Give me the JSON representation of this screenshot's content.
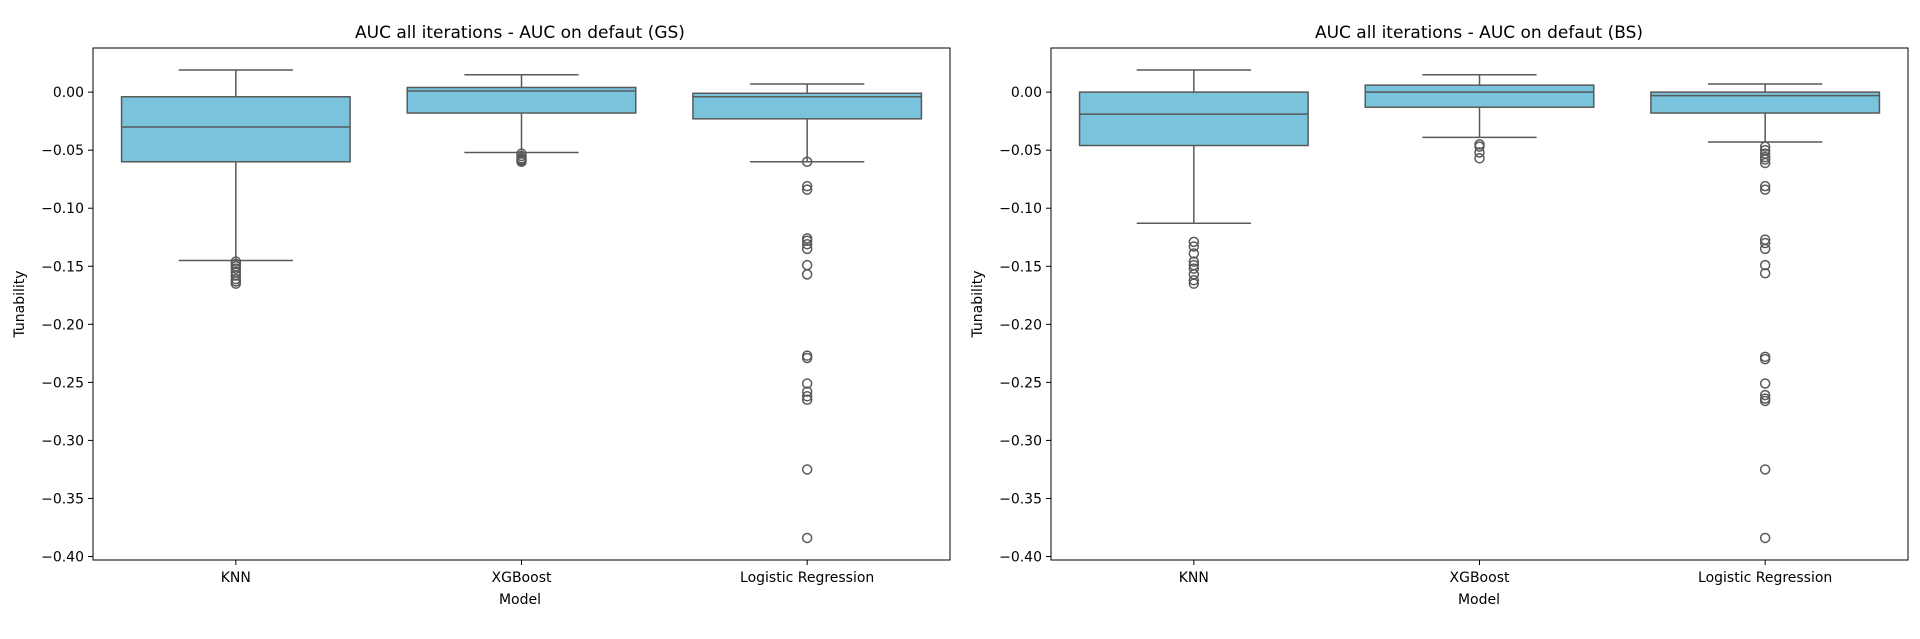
{
  "colors": {
    "box_fill": "#7ac3dc",
    "box_edge": "#595959",
    "axes": "#000000"
  },
  "chart_data": [
    {
      "type": "box",
      "title": "AUC all iterations - AUC on defaut (GS)",
      "xlabel": "Model",
      "ylabel": "Tunability",
      "ylim": [
        -0.403,
        0.038
      ],
      "yticks": [
        "0.00",
        "−0.05",
        "−0.10",
        "−0.15",
        "−0.20",
        "−0.25",
        "−0.30",
        "−0.35",
        "−0.40"
      ],
      "ytick_values": [
        0.0,
        -0.05,
        -0.1,
        -0.15,
        -0.2,
        -0.25,
        -0.3,
        -0.35,
        -0.4
      ],
      "grid": false,
      "categories": [
        "KNN",
        "XGBoost",
        "Logistic Regression"
      ],
      "boxes": [
        {
          "whisker_low": -0.145,
          "q1": -0.06,
          "median": -0.03,
          "q3": -0.004,
          "whisker_high": 0.019,
          "outliers": [
            -0.146,
            -0.148,
            -0.15,
            -0.152,
            -0.155,
            -0.158,
            -0.161,
            -0.163,
            -0.165
          ]
        },
        {
          "whisker_low": -0.052,
          "q1": -0.018,
          "median": 0.001,
          "q3": 0.004,
          "whisker_high": 0.015,
          "outliers": [
            -0.053,
            -0.055,
            -0.057,
            -0.058,
            -0.059,
            -0.06
          ]
        },
        {
          "whisker_low": -0.06,
          "q1": -0.023,
          "median": -0.004,
          "q3": -0.001,
          "whisker_high": 0.007,
          "outliers": [
            -0.06,
            -0.081,
            -0.084,
            -0.126,
            -0.128,
            -0.131,
            -0.135,
            -0.149,
            -0.157,
            -0.227,
            -0.229,
            -0.251,
            -0.258,
            -0.262,
            -0.265,
            -0.325,
            -0.384
          ]
        }
      ]
    },
    {
      "type": "box",
      "title": "AUC all iterations - AUC on defaut (BS)",
      "xlabel": "Model",
      "ylabel": "Tunability",
      "ylim": [
        -0.403,
        0.038
      ],
      "yticks": [
        "0.00",
        "−0.05",
        "−0.10",
        "−0.15",
        "−0.20",
        "−0.25",
        "−0.30",
        "−0.35",
        "−0.40"
      ],
      "ytick_values": [
        0.0,
        -0.05,
        -0.1,
        -0.15,
        -0.2,
        -0.25,
        -0.3,
        -0.35,
        -0.4
      ],
      "grid": false,
      "categories": [
        "KNN",
        "XGBoost",
        "Logistic Regression"
      ],
      "boxes": [
        {
          "whisker_low": -0.113,
          "q1": -0.046,
          "median": -0.019,
          "q3": 0.0,
          "whisker_high": 0.019,
          "outliers": [
            -0.129,
            -0.133,
            -0.139,
            -0.146,
            -0.149,
            -0.152,
            -0.157,
            -0.162,
            -0.165
          ]
        },
        {
          "whisker_low": -0.039,
          "q1": -0.013,
          "median": 0.0,
          "q3": 0.006,
          "whisker_high": 0.015,
          "outliers": [
            -0.045,
            -0.047,
            -0.052,
            -0.057
          ]
        },
        {
          "whisker_low": -0.043,
          "q1": -0.018,
          "median": -0.003,
          "q3": 0.0,
          "whisker_high": 0.007,
          "outliers": [
            -0.047,
            -0.05,
            -0.053,
            -0.056,
            -0.058,
            -0.061,
            -0.081,
            -0.084,
            -0.127,
            -0.13,
            -0.135,
            -0.149,
            -0.156,
            -0.228,
            -0.23,
            -0.251,
            -0.261,
            -0.264,
            -0.266,
            -0.325,
            -0.384
          ]
        }
      ]
    }
  ]
}
